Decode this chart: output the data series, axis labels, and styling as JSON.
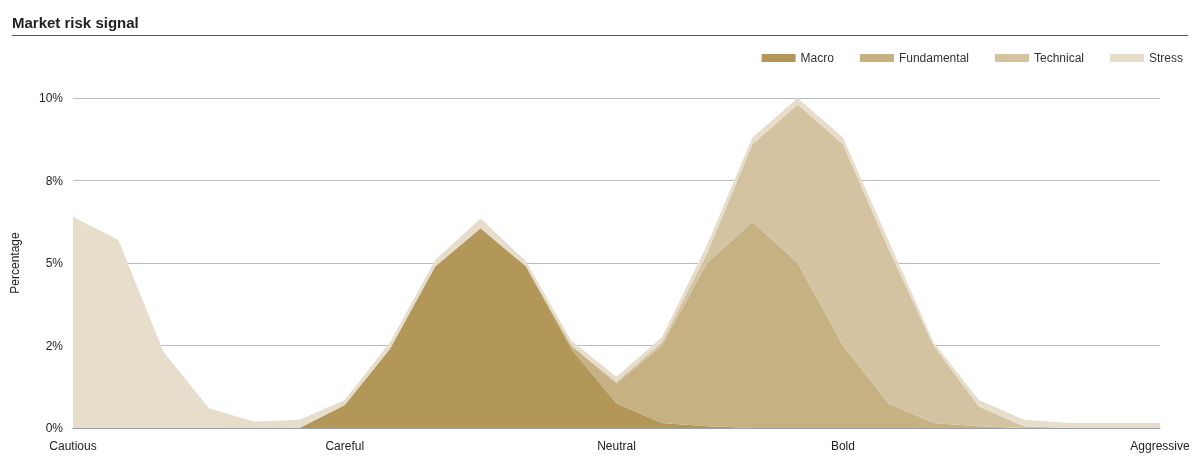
{
  "chart_data": {
    "type": "area",
    "title": "Market risk signal",
    "ylabel": "Percentage",
    "stacked": true,
    "grid": "y",
    "legend": "top right",
    "categories": [
      "Cautious",
      null,
      null,
      null,
      null,
      null,
      "Careful",
      null,
      null,
      null,
      null,
      null,
      "Neutral",
      null,
      null,
      null,
      null,
      "Bold",
      null,
      null,
      null,
      null,
      null,
      null,
      "Aggressive"
    ],
    "ylim": [
      0,
      10
    ],
    "yticks": [
      {
        "value": 0,
        "label": "0%"
      },
      {
        "value": 2.5,
        "label": "2%"
      },
      {
        "value": 5,
        "label": "5%"
      },
      {
        "value": 7.5,
        "label": "8%"
      },
      {
        "value": 10,
        "label": "10%"
      }
    ],
    "series": [
      {
        "name": "Macro",
        "color": "#b39759",
        "values": [
          0,
          0,
          0,
          0,
          0,
          0,
          0.7,
          2.4,
          4.9,
          6.05,
          4.9,
          2.4,
          0.75,
          0.15,
          0.05,
          0,
          0,
          0,
          0,
          0,
          0,
          0,
          0,
          0,
          0
        ]
      },
      {
        "name": "Fundamental",
        "color": "#c6b183",
        "values": [
          0,
          0,
          0,
          0,
          0,
          0,
          0,
          0,
          0,
          0,
          0,
          0.1,
          0.6,
          2.35,
          4.95,
          6.25,
          5.0,
          2.5,
          0.75,
          0.15,
          0.05,
          0,
          0,
          0,
          0
        ]
      },
      {
        "name": "Technical",
        "color": "#d4c3a0",
        "values": [
          0,
          0,
          0,
          0,
          0,
          0,
          0,
          0,
          0,
          0,
          0,
          0,
          0.05,
          0.1,
          0.3,
          2.35,
          4.8,
          6.1,
          4.7,
          2.35,
          0.6,
          0.05,
          0,
          0,
          0
        ]
      },
      {
        "name": "Stress",
        "color": "#e7ddcb",
        "values": [
          6.4,
          5.7,
          2.3,
          0.6,
          0.2,
          0.25,
          0.15,
          0.2,
          0.2,
          0.3,
          0.15,
          0.15,
          0.15,
          0.15,
          0.25,
          0.2,
          0.2,
          0.2,
          0.25,
          0.1,
          0.2,
          0.2,
          0.15,
          0.15,
          0.15
        ]
      }
    ]
  }
}
